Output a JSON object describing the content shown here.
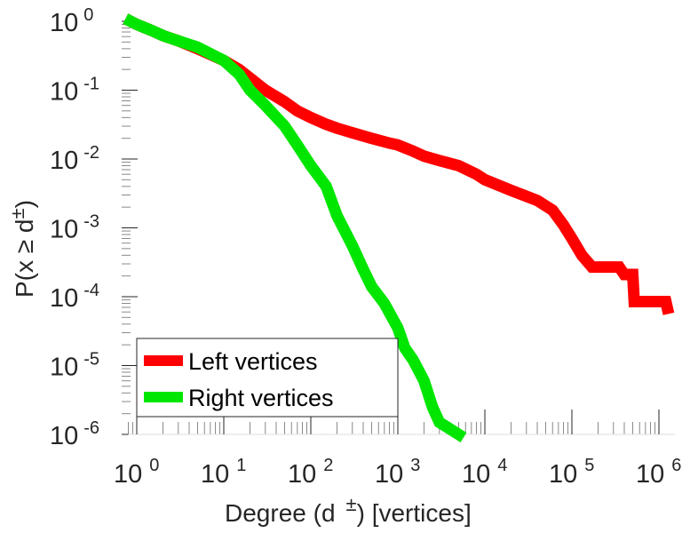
{
  "chart_data": {
    "type": "line",
    "xscale": "log",
    "yscale": "log",
    "xlim": [
      0.8,
      1800000
    ],
    "ylim": [
      1e-06,
      1
    ],
    "xlabel": {
      "prefix": "Degree (d",
      "sup": "±",
      "suffix": ") [vertices]"
    },
    "ylabel": {
      "prefix": "P(x ≥ d",
      "sup": "±",
      "suffix": ")"
    },
    "x_ticks": [
      {
        "base": "10",
        "exp": "0",
        "value": 1
      },
      {
        "base": "10",
        "exp": "1",
        "value": 10
      },
      {
        "base": "10",
        "exp": "2",
        "value": 100
      },
      {
        "base": "10",
        "exp": "3",
        "value": 1000
      },
      {
        "base": "10",
        "exp": "4",
        "value": 10000
      },
      {
        "base": "10",
        "exp": "5",
        "value": 100000
      },
      {
        "base": "10",
        "exp": "6",
        "value": 1000000
      }
    ],
    "y_ticks": [
      {
        "base": "10",
        "exp": "0",
        "value": 1
      },
      {
        "base": "10",
        "exp": "-1",
        "value": 0.1
      },
      {
        "base": "10",
        "exp": "-2",
        "value": 0.01
      },
      {
        "base": "10",
        "exp": "-3",
        "value": 0.001
      },
      {
        "base": "10",
        "exp": "-4",
        "value": 0.0001
      },
      {
        "base": "10",
        "exp": "-5",
        "value": 1e-05
      },
      {
        "base": "10",
        "exp": "-6",
        "value": 1e-06
      }
    ],
    "legend_position": "bottom-left",
    "grid": false,
    "series": [
      {
        "name": "Left vertices",
        "color": "#ff0000",
        "points": [
          [
            0.85,
            1.0
          ],
          [
            1,
            0.9
          ],
          [
            1.2,
            0.82
          ],
          [
            1.5,
            0.73
          ],
          [
            2,
            0.62
          ],
          [
            3,
            0.52
          ],
          [
            5,
            0.4
          ],
          [
            10,
            0.27
          ],
          [
            15,
            0.2
          ],
          [
            20,
            0.15
          ],
          [
            30,
            0.1
          ],
          [
            50,
            0.068
          ],
          [
            70,
            0.05
          ],
          [
            100,
            0.04
          ],
          [
            150,
            0.032
          ],
          [
            200,
            0.028
          ],
          [
            300,
            0.024
          ],
          [
            500,
            0.02
          ],
          [
            800,
            0.017
          ],
          [
            1000,
            0.016
          ],
          [
            1500,
            0.013
          ],
          [
            2000,
            0.011
          ],
          [
            3000,
            0.0095
          ],
          [
            5000,
            0.008
          ],
          [
            8000,
            0.006
          ],
          [
            10000,
            0.005
          ],
          [
            20000,
            0.0035
          ],
          [
            40000,
            0.0025
          ],
          [
            60000,
            0.0018
          ],
          [
            80000,
            0.0011
          ],
          [
            100000,
            0.0007
          ],
          [
            130000,
            0.0004
          ],
          [
            170000,
            0.00027
          ],
          [
            250000,
            0.00027
          ],
          [
            350000,
            0.00027
          ],
          [
            400000,
            0.00021
          ],
          [
            500000,
            0.00021
          ],
          [
            520000,
            8.5e-05
          ],
          [
            1200000,
            8.5e-05
          ],
          [
            1250000,
            6.8e-05
          ]
        ]
      },
      {
        "name": "Right vertices",
        "color": "#00e600",
        "points": [
          [
            0.85,
            1.0
          ],
          [
            1,
            0.9
          ],
          [
            1.2,
            0.82
          ],
          [
            1.5,
            0.73
          ],
          [
            2,
            0.62
          ],
          [
            3,
            0.52
          ],
          [
            5,
            0.42
          ],
          [
            10,
            0.27
          ],
          [
            15,
            0.17
          ],
          [
            20,
            0.1
          ],
          [
            30,
            0.06
          ],
          [
            50,
            0.03
          ],
          [
            70,
            0.016
          ],
          [
            100,
            0.008
          ],
          [
            150,
            0.004
          ],
          [
            200,
            0.0015
          ],
          [
            300,
            0.00055
          ],
          [
            400,
            0.00025
          ],
          [
            500,
            0.00014
          ],
          [
            700,
            8e-05
          ],
          [
            1000,
            3.5e-05
          ],
          [
            1200,
            1.8e-05
          ],
          [
            1500,
            1.2e-05
          ],
          [
            2000,
            6e-06
          ],
          [
            2500,
            2.5e-06
          ],
          [
            3000,
            1.5e-06
          ],
          [
            5000,
            1e-06
          ]
        ]
      }
    ]
  }
}
